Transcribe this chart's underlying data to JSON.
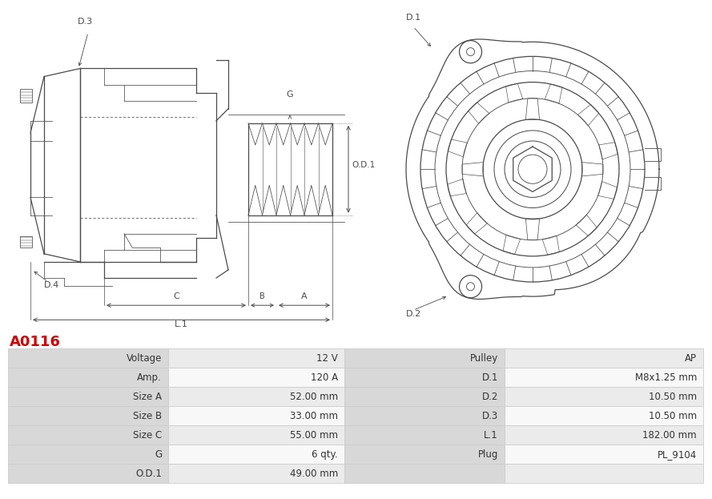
{
  "title": "A0116",
  "title_color": "#cc0000",
  "background_color": "#ffffff",
  "table_rows": [
    [
      "Voltage",
      "12 V",
      "Pulley",
      "AP"
    ],
    [
      "Amp.",
      "120 A",
      "D.1",
      "M8x1.25 mm"
    ],
    [
      "Size A",
      "52.00 mm",
      "D.2",
      "10.50 mm"
    ],
    [
      "Size B",
      "33.00 mm",
      "D.3",
      "10.50 mm"
    ],
    [
      "Size C",
      "55.00 mm",
      "L.1",
      "182.00 mm"
    ],
    [
      "G",
      "6 qty.",
      "Plug",
      "PL_9104"
    ],
    [
      "O.D.1",
      "49.00 mm",
      "",
      ""
    ]
  ],
  "header_bg": "#d8d8d8",
  "row_bg_odd": "#ebebeb",
  "row_bg_even": "#f8f8f8",
  "cell_text_color": "#333333",
  "border_color": "#cccccc",
  "font_size_table": 8.5,
  "font_size_title": 13
}
